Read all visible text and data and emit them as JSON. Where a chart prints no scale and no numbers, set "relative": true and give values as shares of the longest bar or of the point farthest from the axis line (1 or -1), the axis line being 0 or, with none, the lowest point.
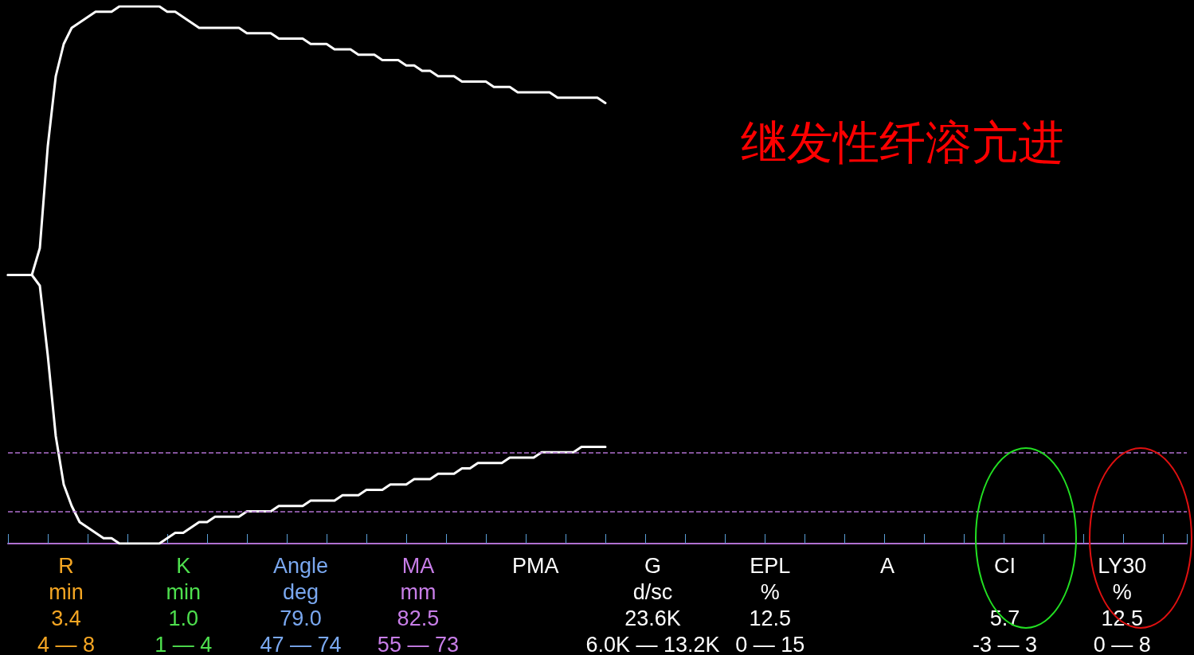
{
  "chart_data": {
    "type": "line",
    "title": "继发性纤溶亢进",
    "relative": true,
    "grid": false,
    "marker": "none",
    "line_style": "solid",
    "categories": [
      null,
      null,
      null,
      null,
      null,
      null,
      null,
      null,
      null,
      null,
      null,
      null,
      null,
      null,
      null,
      null,
      null,
      null,
      null,
      null,
      null,
      null,
      null,
      null,
      null,
      null,
      null,
      null,
      null,
      null,
      null,
      null,
      null,
      null,
      null,
      null,
      null,
      null,
      null,
      null,
      null,
      null,
      null,
      null,
      null,
      null,
      null,
      null,
      null,
      null,
      null,
      null,
      null,
      null,
      null,
      null,
      null,
      null,
      null,
      null,
      null,
      null,
      null,
      null,
      null,
      null,
      null,
      null,
      null,
      null,
      null,
      null,
      null,
      null,
      null,
      null,
      null,
      null,
      null,
      null,
      null,
      null,
      null,
      null,
      null,
      null,
      null,
      null,
      null,
      null,
      null,
      null,
      null,
      null,
      null,
      null,
      null,
      null,
      null,
      null,
      null,
      null,
      null,
      null,
      null,
      null,
      null,
      null,
      null,
      null,
      null,
      null,
      null,
      null,
      null,
      null,
      null,
      null,
      null,
      null,
      null,
      null,
      null,
      null,
      null,
      null,
      null,
      null,
      null,
      null,
      null,
      null,
      null,
      null,
      null,
      null,
      null,
      null,
      null,
      null,
      null,
      null,
      null,
      null,
      null,
      null,
      null,
      null,
      null
    ],
    "series": [
      {
        "color": "#ffffff",
        "values": [
          0.5,
          0.5,
          0.5,
          0.5,
          0.55,
          0.74,
          0.87,
          0.93,
          0.96,
          0.97,
          0.98,
          0.99,
          0.99,
          0.99,
          1,
          1,
          1,
          1,
          1,
          1,
          0.99,
          0.99,
          0.98,
          0.97,
          0.96,
          0.96,
          0.96,
          0.96,
          0.96,
          0.96,
          0.95,
          0.95,
          0.95,
          0.95,
          0.94,
          0.94,
          0.94,
          0.94,
          0.93,
          0.93,
          0.93,
          0.92,
          0.92,
          0.92,
          0.91,
          0.91,
          0.91,
          0.9,
          0.9,
          0.9,
          0.89,
          0.89,
          0.88,
          0.88,
          0.87,
          0.87,
          0.87,
          0.86,
          0.86,
          0.86,
          0.86,
          0.85,
          0.85,
          0.85,
          0.84,
          0.84,
          0.84,
          0.84,
          0.84,
          0.83,
          0.83,
          0.83,
          0.83,
          0.83,
          0.83,
          0.82,
          null,
          null,
          null,
          null,
          null,
          null,
          null,
          null,
          null,
          null,
          null,
          null,
          null,
          null,
          null,
          null,
          null,
          null,
          null,
          null,
          null,
          null,
          null,
          null,
          null,
          null,
          null,
          null,
          null,
          null,
          null,
          null,
          null,
          null,
          null,
          null,
          null,
          null,
          null,
          null,
          null,
          null,
          null,
          null,
          null,
          null,
          null,
          null,
          null,
          null,
          null,
          null,
          null,
          null,
          null,
          null,
          null,
          null,
          null,
          null,
          null,
          null,
          null,
          null,
          null,
          null,
          null,
          null,
          null,
          null,
          null,
          null,
          null
        ]
      },
      {
        "color": "#ffffff",
        "values": [
          0.5,
          0.5,
          0.5,
          0.5,
          0.48,
          0.35,
          0.2,
          0.11,
          0.07,
          0.04,
          0.03,
          0.02,
          0.01,
          0.01,
          0,
          0,
          0,
          0,
          0,
          0,
          0.01,
          0.02,
          0.02,
          0.03,
          0.04,
          0.04,
          0.05,
          0.05,
          0.05,
          0.05,
          0.06,
          0.06,
          0.06,
          0.06,
          0.07,
          0.07,
          0.07,
          0.07,
          0.08,
          0.08,
          0.08,
          0.08,
          0.09,
          0.09,
          0.09,
          0.1,
          0.1,
          0.1,
          0.11,
          0.11,
          0.11,
          0.12,
          0.12,
          0.12,
          0.13,
          0.13,
          0.13,
          0.14,
          0.14,
          0.15,
          0.15,
          0.15,
          0.15,
          0.16,
          0.16,
          0.16,
          0.16,
          0.17,
          0.17,
          0.17,
          0.17,
          0.17,
          0.18,
          0.18,
          0.18,
          0.18,
          null,
          null,
          null,
          null,
          null,
          null,
          null,
          null,
          null,
          null,
          null,
          null,
          null,
          null,
          null,
          null,
          null,
          null,
          null,
          null,
          null,
          null,
          null,
          null,
          null,
          null,
          null,
          null,
          null,
          null,
          null,
          null,
          null,
          null,
          null,
          null,
          null,
          null,
          null,
          null,
          null,
          null,
          null,
          null,
          null,
          null,
          null,
          null,
          null,
          null,
          null,
          null,
          null,
          null,
          null,
          null,
          null,
          null,
          null,
          null,
          null,
          null,
          null,
          null,
          null,
          null,
          null,
          null,
          null,
          null,
          null,
          null,
          null
        ]
      }
    ],
    "ref_lines": [
      {
        "axis": "y",
        "value": 0.17,
        "color": "#b070d0",
        "line_style": "dashed"
      },
      {
        "axis": "y",
        "value": 0.06,
        "color": "#b070d0",
        "line_style": "dashed"
      }
    ],
    "annotations": [
      "R\nmin\n3.4\n4 — 8",
      "K\nmin\n1.0\n1 — 4",
      "Angle\ndeg\n79.0\n47 — 74",
      "MA\nmm\n82.5\n55 — 73",
      "PMA",
      "G\nd/sc\n23.6K\n6.0K — 13.2K",
      "EPL\n%\n12.5\n0 — 15",
      "A",
      "CI\n\n5.7\n-3 — 3",
      "LY30\n%\n12.5\n0 — 8"
    ]
  }
}
